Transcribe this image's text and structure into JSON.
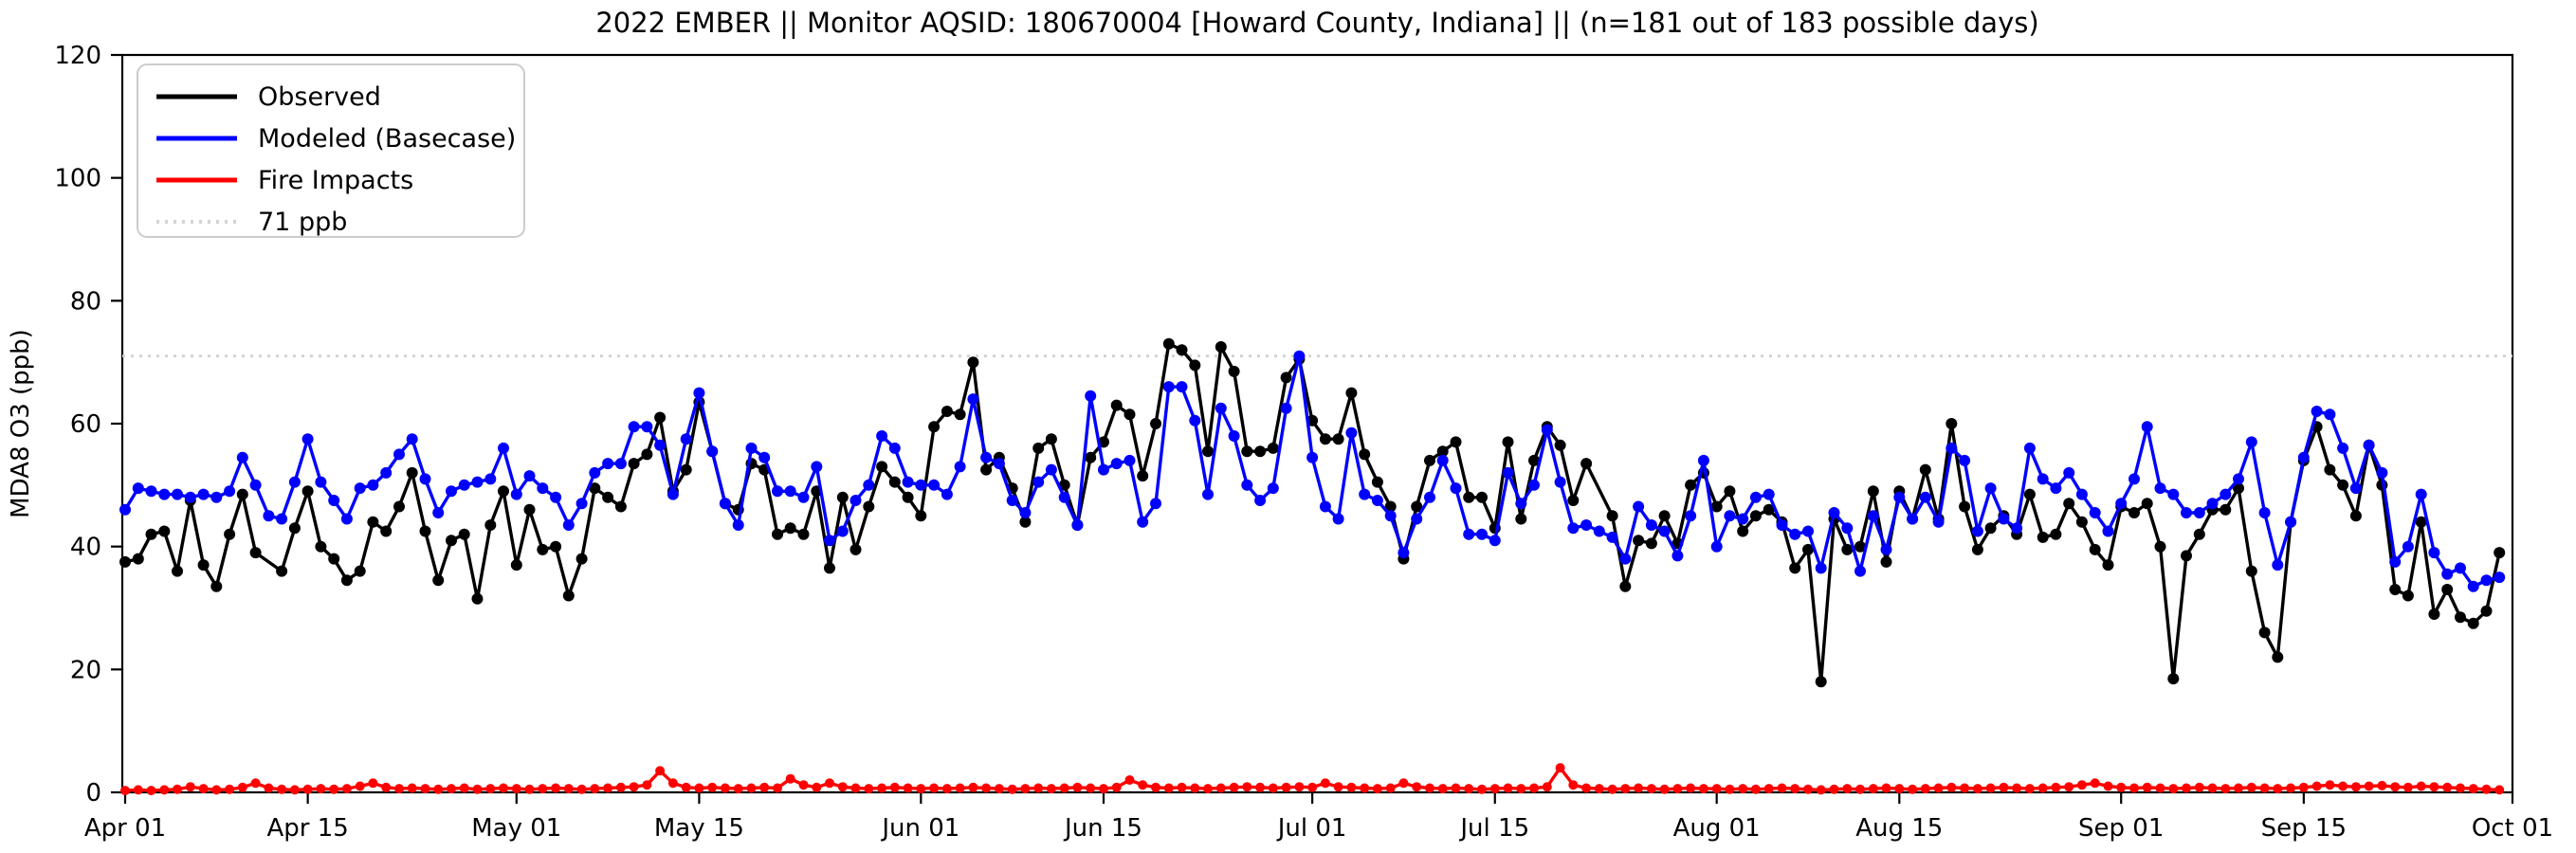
{
  "figure": {
    "title": "2022 EMBER || Monitor AQSID: 180670004 [Howard County, Indiana] || (n=181 out of 183 possible days)",
    "ylabel": "MDA8 O3 (ppb)",
    "background": "#ffffff"
  },
  "chart_data": {
    "type": "line",
    "title": "2022 EMBER || Monitor AQSID: 180670004 [Howard County, Indiana] || (n=181 out of 183 possible days)",
    "xlabel": "",
    "ylabel": "MDA8 O3 (ppb)",
    "ylim": [
      0,
      120
    ],
    "yticks": [
      0,
      20,
      40,
      60,
      80,
      100,
      120
    ],
    "grid": false,
    "legend_position": "upper left",
    "x_start_date": "2022-04-01",
    "x_end_label": "Oct 01",
    "n_days": 183,
    "xtick_labels": [
      "Apr 01",
      "Apr 15",
      "May 01",
      "May 15",
      "Jun 01",
      "Jun 15",
      "Jul 01",
      "Jul 15",
      "Aug 01",
      "Aug 15",
      "Sep 01",
      "Sep 15",
      "Oct 01"
    ],
    "xtick_day_index": [
      0,
      14,
      30,
      44,
      61,
      75,
      91,
      105,
      122,
      136,
      153,
      167,
      183
    ],
    "threshold": {
      "value": 71,
      "label": "71 ppb",
      "color": "#d3d3d3",
      "style": "dotted"
    },
    "series": [
      {
        "name": "Observed",
        "color": "#000000",
        "marker": "circle",
        "values": [
          37.5,
          38,
          42,
          42.5,
          36,
          47.5,
          37,
          33.5,
          42,
          48.5,
          39,
          null,
          36,
          43,
          49,
          40,
          38,
          34.5,
          36,
          44,
          42.5,
          46.5,
          52,
          42.5,
          34.5,
          41,
          42,
          31.5,
          43.5,
          49,
          37,
          46,
          39.5,
          40,
          32,
          38,
          49.5,
          48,
          46.5,
          53.5,
          55,
          61,
          49,
          52.5,
          63.5,
          55.5,
          47,
          46,
          53.5,
          52.5,
          42,
          43,
          42,
          49,
          36.5,
          48,
          39.5,
          46.5,
          53,
          50.5,
          48,
          45,
          59.5,
          62,
          61.5,
          70,
          52.5,
          54.5,
          49.5,
          44,
          56,
          57.5,
          50,
          43.5,
          54.5,
          57,
          63,
          61.5,
          51.5,
          60,
          73,
          72,
          69.5,
          55.5,
          72.5,
          68.5,
          55.5,
          55.5,
          56,
          67.5,
          70.5,
          60.5,
          57.5,
          57.5,
          65,
          55,
          50.5,
          46.5,
          38,
          46.5,
          54,
          55.5,
          57,
          48,
          48,
          43,
          57,
          44.5,
          54,
          59.5,
          56.5,
          47.5,
          53.5,
          null,
          45,
          33.5,
          41,
          40.5,
          45,
          40.5,
          50,
          52,
          46.5,
          49,
          42.5,
          45,
          46,
          44,
          36.5,
          39.5,
          18,
          44.5,
          39.5,
          40,
          49,
          37.5,
          49,
          44.5,
          52.5,
          44.5,
          60,
          46.5,
          39.5,
          43,
          45,
          42,
          48.5,
          41.5,
          42,
          47,
          44,
          39.5,
          37,
          46.5,
          45.5,
          47,
          40,
          18.5,
          38.5,
          42,
          46,
          46,
          49.5,
          36,
          26,
          22,
          44,
          54,
          59.5,
          52.5,
          50,
          45,
          56.5,
          50,
          33,
          32,
          44,
          29,
          33,
          28.5,
          27.5,
          29.5,
          39
        ]
      },
      {
        "name": "Modeled (Basecase)",
        "color": "#0000ff",
        "marker": "circle",
        "values": [
          46,
          49.5,
          49,
          48.5,
          48.5,
          48,
          48.5,
          48,
          49,
          54.5,
          50,
          45,
          44.5,
          50.5,
          57.5,
          50.5,
          47.5,
          44.5,
          49.5,
          50,
          52,
          55,
          57.5,
          51,
          45.5,
          49,
          50,
          50.5,
          51,
          56,
          48.5,
          51.5,
          49.5,
          48,
          43.5,
          47,
          52,
          53.5,
          53.5,
          59.5,
          59.5,
          56.5,
          48.5,
          57.5,
          65,
          55.5,
          47,
          43.5,
          56,
          54.5,
          49,
          49,
          48,
          53,
          41,
          42.5,
          47.5,
          50,
          58,
          56,
          50.5,
          50,
          50,
          48.5,
          53,
          64,
          54.5,
          53.5,
          47.5,
          45.5,
          50.5,
          52.5,
          48,
          43.5,
          64.5,
          52.5,
          53.5,
          54,
          44,
          47,
          66,
          66,
          60.5,
          48.5,
          62.5,
          58,
          50,
          47.5,
          49.5,
          62.5,
          71,
          54.5,
          46.5,
          44.5,
          58.5,
          48.5,
          47.5,
          45,
          39,
          44.5,
          48,
          54,
          49.5,
          42,
          42,
          41,
          52,
          47,
          50,
          59,
          50.5,
          43,
          43.5,
          42.5,
          41.5,
          38,
          46.5,
          43.5,
          42.5,
          38.5,
          45,
          54,
          40,
          45,
          44.5,
          48,
          48.5,
          43.5,
          42,
          42.5,
          36.5,
          45.5,
          43,
          36,
          45,
          39.5,
          48,
          44.5,
          48,
          44,
          56,
          54,
          42.5,
          49.5,
          44.5,
          43,
          56,
          51,
          49.5,
          52,
          48.5,
          45.5,
          42.5,
          47,
          51,
          59.5,
          49.5,
          48.5,
          45.5,
          45.5,
          47,
          48.5,
          51,
          57,
          45.5,
          37,
          44,
          54.5,
          62,
          61.5,
          56,
          49.5,
          56.5,
          52,
          37.5,
          40,
          48.5,
          39,
          35.5,
          36.5,
          33.5,
          34.5,
          35
        ]
      },
      {
        "name": "Fire Impacts",
        "color": "#ff0000",
        "marker": "circle",
        "values": [
          0.3,
          0.4,
          0.3,
          0.4,
          0.5,
          0.9,
          0.6,
          0.4,
          0.5,
          0.8,
          1.5,
          0.7,
          0.5,
          0.4,
          0.5,
          0.6,
          0.5,
          0.6,
          1.0,
          1.5,
          0.8,
          0.6,
          0.7,
          0.6,
          0.5,
          0.6,
          0.7,
          0.5,
          0.6,
          0.7,
          0.6,
          0.5,
          0.6,
          0.7,
          0.6,
          0.5,
          0.6,
          0.7,
          0.8,
          0.9,
          1.2,
          3.5,
          1.5,
          0.8,
          0.7,
          0.8,
          0.7,
          0.6,
          0.7,
          0.8,
          0.7,
          2.2,
          1.2,
          0.8,
          1.5,
          0.9,
          0.7,
          0.6,
          0.7,
          0.8,
          0.7,
          0.6,
          0.7,
          0.6,
          0.7,
          0.8,
          0.7,
          0.6,
          0.5,
          0.6,
          0.7,
          0.6,
          0.7,
          0.8,
          0.7,
          0.6,
          0.8,
          2.0,
          1.2,
          0.8,
          0.7,
          0.8,
          0.7,
          0.6,
          0.7,
          0.8,
          0.9,
          0.8,
          0.7,
          0.8,
          0.9,
          0.8,
          1.5,
          0.9,
          0.8,
          0.7,
          0.6,
          0.7,
          1.5,
          0.9,
          0.7,
          0.6,
          0.7,
          0.6,
          0.5,
          0.6,
          0.7,
          0.6,
          0.7,
          0.9,
          4.0,
          1.2,
          0.7,
          0.6,
          0.5,
          0.6,
          0.7,
          0.6,
          0.5,
          0.6,
          0.7,
          0.6,
          0.6,
          0.5,
          0.6,
          0.5,
          0.6,
          0.7,
          0.6,
          0.5,
          0.4,
          0.5,
          0.6,
          0.5,
          0.6,
          0.7,
          0.6,
          0.5,
          0.6,
          0.7,
          0.8,
          0.7,
          0.6,
          0.7,
          0.8,
          0.7,
          0.6,
          0.7,
          0.8,
          0.9,
          1.2,
          1.5,
          1.0,
          0.8,
          0.7,
          0.8,
          0.7,
          0.6,
          0.7,
          0.8,
          0.7,
          0.6,
          0.7,
          0.8,
          0.7,
          0.6,
          0.7,
          0.8,
          1.0,
          1.2,
          1.0,
          0.9,
          1.0,
          1.1,
          0.9,
          0.8,
          1.0,
          0.9,
          0.8,
          0.7,
          0.6,
          0.5,
          0.4
        ]
      }
    ],
    "legend_entries": [
      "Observed",
      "Modeled (Basecase)",
      "Fire Impacts",
      "71 ppb"
    ]
  }
}
